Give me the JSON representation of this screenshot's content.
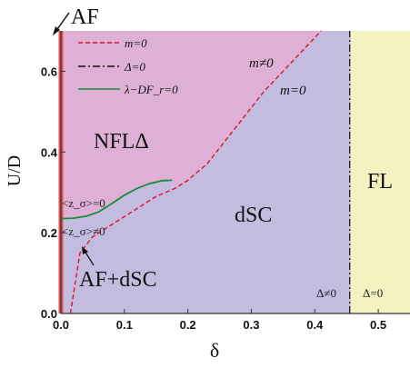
{
  "chart_data": {
    "type": "phase-diagram",
    "xlabel": "δ",
    "ylabel": "U/D",
    "xlim": [
      0.0,
      0.55
    ],
    "ylim": [
      0.0,
      0.7
    ],
    "xticks": [
      "0.0",
      "0.1",
      "0.2",
      "0.3",
      "0.4",
      "0.5"
    ],
    "yticks": [
      "0.0",
      "0.2",
      "0.4",
      "0.6"
    ],
    "x_tick_values": [
      0.0,
      0.1,
      0.2,
      0.3,
      0.4,
      0.5
    ],
    "y_tick_values": [
      0.0,
      0.2,
      0.4,
      0.6
    ],
    "legend_position": "top-left",
    "colors": {
      "nfl_region": "#deb0d6",
      "dsc_region": "#c4bcdf",
      "fl_region": "#f3f2c0",
      "af_line": "#e05050",
      "m_line": "#e0102a",
      "delta_line": "#111111",
      "lambda_line": "#1a8c3c"
    },
    "series": [
      {
        "name": "m=0",
        "style": "dashed",
        "x": [
          0.015,
          0.03,
          0.05,
          0.08,
          0.1,
          0.12,
          0.15,
          0.18,
          0.2,
          0.23,
          0.26,
          0.29,
          0.32,
          0.35,
          0.38,
          0.41
        ],
        "y": [
          0.0,
          0.15,
          0.19,
          0.22,
          0.24,
          0.26,
          0.29,
          0.31,
          0.33,
          0.37,
          0.43,
          0.49,
          0.55,
          0.6,
          0.65,
          0.7
        ]
      },
      {
        "name": "Δ=0",
        "style": "dashdot",
        "x": [
          0.455,
          0.455
        ],
        "y": [
          0.0,
          0.7
        ]
      },
      {
        "name": "λ−DF_r=0",
        "style": "solid",
        "x": [
          0.0,
          0.02,
          0.04,
          0.06,
          0.08,
          0.1,
          0.12,
          0.14,
          0.16,
          0.175
        ],
        "y": [
          0.235,
          0.236,
          0.241,
          0.252,
          0.272,
          0.293,
          0.31,
          0.322,
          0.329,
          0.33
        ]
      }
    ],
    "af_line": {
      "x": 0.0,
      "y": [
        0.0,
        0.7
      ]
    },
    "legend": [
      {
        "label": "m=0",
        "style": "dashed"
      },
      {
        "label": "Δ=0",
        "style": "dashdot"
      },
      {
        "label": "λ−DF_r=0",
        "style": "solid"
      }
    ],
    "annotations": {
      "af_top": "AF",
      "nfl": "NFLΔ",
      "dsc": "dSC",
      "fl": "FL",
      "af_dsc": "AF+dSC",
      "m_neq": "m≠0",
      "m_eq": "m=0",
      "z_eq": "<z_σ>=0",
      "z_neq": "<z_σ>≠0",
      "delta_neq": "Δ≠0",
      "delta_eq": "Δ=0"
    }
  }
}
